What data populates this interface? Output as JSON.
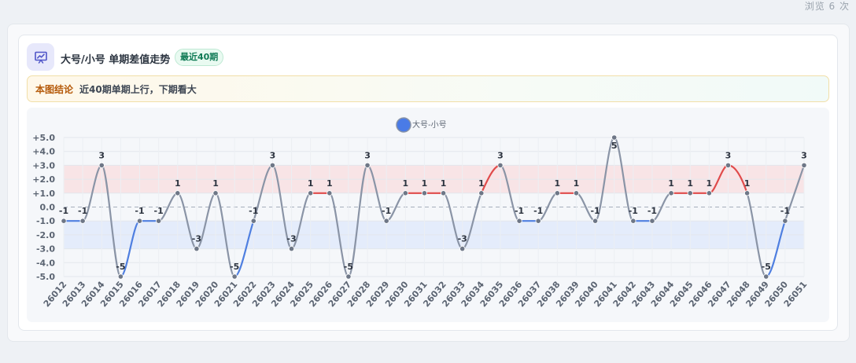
{
  "page": {
    "view_count": "浏览 6 次"
  },
  "header": {
    "title": "大号/小号 单期差值走势",
    "badge": "最近40期",
    "icon": "chart-presentation-icon"
  },
  "conclusion": {
    "label": "本图结论",
    "text": "近40期单期上行，下期看大"
  },
  "colors": {
    "series": "#8a94a6",
    "up": "#e04b4b",
    "down": "#4f7fe0",
    "legend_marker": "#4a7be6",
    "upper_band": "#f8e4e6",
    "lower_band": "#e4ecfb"
  },
  "chart_data": {
    "type": "line",
    "title": "",
    "xlabel": "",
    "ylabel": "",
    "ylim": [
      -5,
      5
    ],
    "y_ticks": [
      "+5.0",
      "+4.0",
      "+3.0",
      "+2.0",
      "+1.0",
      "0.0",
      "-1.0",
      "-2.0",
      "-3.0",
      "-4.0",
      "-5.0"
    ],
    "upper_band": [
      1,
      3
    ],
    "lower_band": [
      -3,
      -1
    ],
    "grid": true,
    "legend": "top-center",
    "categories": [
      "26012",
      "26013",
      "26014",
      "26015",
      "26016",
      "26017",
      "26018",
      "26019",
      "26020",
      "26021",
      "26022",
      "26023",
      "26024",
      "26025",
      "26026",
      "26027",
      "26028",
      "26029",
      "26030",
      "26031",
      "26032",
      "26033",
      "26034",
      "26035",
      "26036",
      "26037",
      "26038",
      "26039",
      "26040",
      "26041",
      "26042",
      "26043",
      "26044",
      "26045",
      "26046",
      "26047",
      "26048",
      "26049",
      "26050",
      "26051"
    ],
    "series": [
      {
        "name": "大号-小号",
        "values": [
          -1,
          -1,
          3,
          -5,
          -1,
          -1,
          1,
          -3,
          1,
          -5,
          -1,
          3,
          -3,
          1,
          1,
          -5,
          3,
          -1,
          1,
          1,
          1,
          -3,
          1,
          3,
          -1,
          -1,
          1,
          1,
          -1,
          5,
          -1,
          -1,
          1,
          1,
          1,
          3,
          1,
          -5,
          -1,
          3
        ]
      }
    ]
  }
}
